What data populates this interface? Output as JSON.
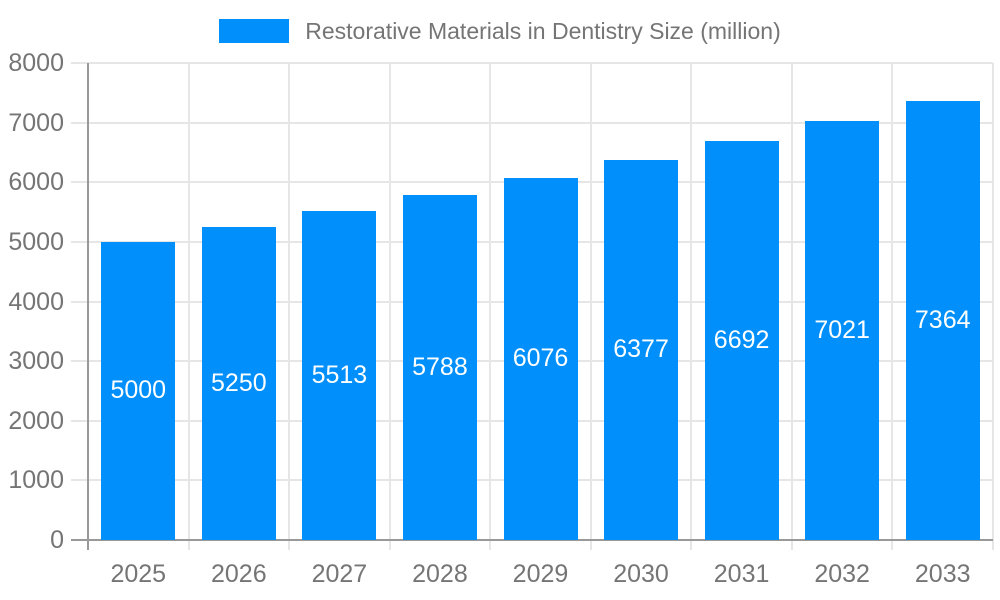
{
  "legend": {
    "label": "Restorative Materials in Dentistry Size (million)"
  },
  "chart_data": {
    "type": "bar",
    "title": "",
    "xlabel": "",
    "ylabel": "",
    "categories": [
      "2025",
      "2026",
      "2027",
      "2028",
      "2029",
      "2030",
      "2031",
      "2032",
      "2033"
    ],
    "series": [
      {
        "name": "Restorative Materials in Dentistry Size (million)",
        "values": [
          5000,
          5250,
          5513,
          5788,
          6076,
          6377,
          6692,
          7021,
          7364
        ]
      }
    ],
    "value_labels_shown": true,
    "value_label_position": "inside-center",
    "ylim": [
      0,
      8000
    ],
    "yticks": [
      0,
      1000,
      2000,
      3000,
      4000,
      5000,
      6000,
      7000,
      8000
    ],
    "grid": true,
    "legend_position": "top-center",
    "colors": {
      "bar": "#008FFB",
      "grid": "#e6e6e6",
      "axis": "#999999",
      "tick_text": "#757575",
      "value_text": "#ffffff",
      "background": "#ffffff"
    }
  }
}
